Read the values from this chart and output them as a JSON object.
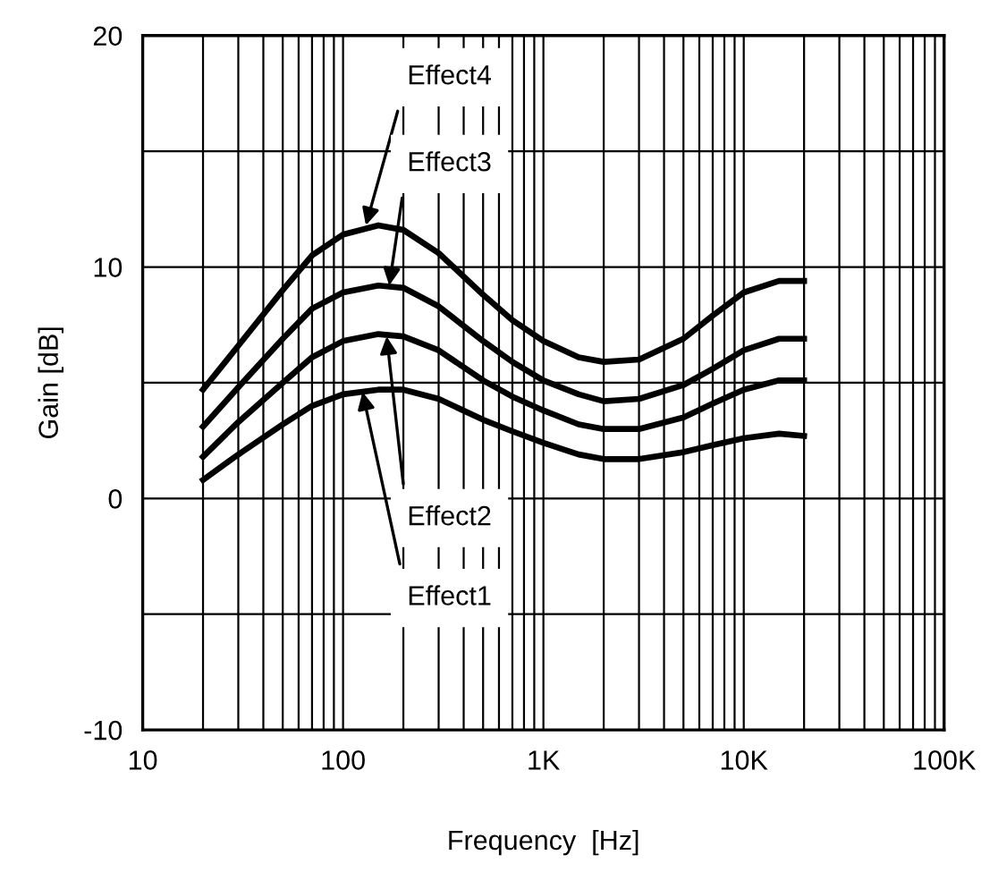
{
  "chart_data": {
    "type": "line",
    "xlabel": "Frequency  [Hz]",
    "ylabel": "Gain [dB]",
    "log": "x",
    "x": [
      20,
      30,
      50,
      70,
      100,
      150,
      200,
      300,
      500,
      700,
      1000,
      1500,
      2000,
      3000,
      5000,
      7000,
      10000,
      15000,
      20000
    ],
    "series": [
      {
        "color": "#000000",
        "values": [
          4.7,
          6.6,
          9.0,
          10.5,
          11.4,
          11.8,
          11.6,
          10.6,
          8.8,
          7.7,
          6.8,
          6.1,
          5.9,
          6.0,
          6.9,
          7.9,
          8.9,
          9.4,
          9.4
        ]
      },
      {
        "color": "#000000",
        "values": [
          3.1,
          4.8,
          6.9,
          8.2,
          8.9,
          9.2,
          9.1,
          8.3,
          6.8,
          5.9,
          5.1,
          4.5,
          4.2,
          4.3,
          4.9,
          5.6,
          6.4,
          6.9,
          6.9
        ]
      },
      {
        "color": "#000000",
        "values": [
          1.8,
          3.3,
          5.0,
          6.1,
          6.8,
          7.1,
          7.0,
          6.4,
          5.1,
          4.4,
          3.8,
          3.2,
          3.0,
          3.0,
          3.5,
          4.1,
          4.7,
          5.1,
          5.1
        ]
      },
      {
        "color": "#000000",
        "values": [
          0.8,
          1.9,
          3.2,
          4.0,
          4.5,
          4.7,
          4.7,
          4.3,
          3.4,
          2.9,
          2.4,
          1.9,
          1.7,
          1.7,
          2.0,
          2.3,
          2.6,
          2.8,
          2.7
        ]
      }
    ],
    "annotations": [
      {
        "text": "Effect4",
        "x": 130,
        "y": 11.8
      },
      {
        "text": "Effect3",
        "x": 170,
        "y": 9.2
      },
      {
        "text": "Effect2",
        "x": 165,
        "y": 7.0
      },
      {
        "text": "Effect1",
        "x": 125,
        "y": 4.6
      }
    ],
    "xlim": [
      10,
      100000
    ],
    "xticks": [
      10,
      100,
      {
        "value": 1000,
        "label": "1K"
      },
      {
        "value": 10000,
        "label": "10K"
      },
      {
        "value": 100000,
        "label": "100K"
      }
    ],
    "ylim": [
      -10,
      20
    ],
    "yticks": [
      -10,
      {
        "value": -5,
        "label": null
      },
      0,
      {
        "value": 5,
        "label": null
      },
      10,
      {
        "value": 15,
        "label": null
      },
      20
    ],
    "grid": true,
    "marker": "none",
    "line_style": "solid"
  }
}
